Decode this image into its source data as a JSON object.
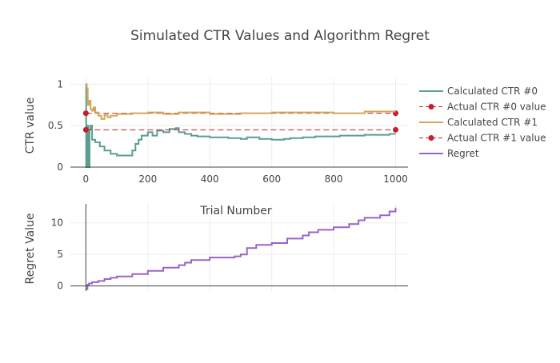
{
  "chart_data": [
    {
      "type": "line",
      "title": "Simulated CTR Values and Algorithm Regret",
      "xlabel": "",
      "ylabel": "CTR value",
      "xlim": [
        -50,
        1040
      ],
      "ylim": [
        0,
        1.08
      ],
      "xticks": [
        0,
        200,
        400,
        600,
        800,
        1000
      ],
      "xtick_labels": [
        "0",
        "200",
        "400",
        "600",
        "800",
        "1000"
      ],
      "yticks": [
        0,
        0.5,
        1
      ],
      "ytick_labels": [
        "0",
        "0.5",
        "1"
      ],
      "grid": true,
      "legend_position": "right",
      "series": [
        {
          "name": "Calculated CTR #0",
          "color": "#5b9e8e",
          "style": "step",
          "x": [
            0,
            1,
            2,
            3,
            5,
            8,
            12,
            15,
            20,
            30,
            45,
            60,
            80,
            100,
            140,
            150,
            160,
            170,
            180,
            200,
            215,
            230,
            250,
            270,
            290,
            300,
            320,
            340,
            360,
            400,
            460,
            500,
            520,
            560,
            600,
            640,
            660,
            700,
            740,
            780,
            820,
            860,
            900,
            940,
            980,
            1000
          ],
          "y": [
            1,
            0,
            0,
            0,
            0.5,
            0,
            0.45,
            0.5,
            0.33,
            0.3,
            0.25,
            0.2,
            0.16,
            0.14,
            0.14,
            0.2,
            0.28,
            0.33,
            0.38,
            0.42,
            0.38,
            0.44,
            0.42,
            0.46,
            0.47,
            0.42,
            0.4,
            0.38,
            0.37,
            0.36,
            0.35,
            0.34,
            0.36,
            0.34,
            0.33,
            0.34,
            0.35,
            0.36,
            0.37,
            0.37,
            0.38,
            0.38,
            0.39,
            0.39,
            0.4,
            0.4
          ]
        },
        {
          "name": "Actual CTR #0 value",
          "color": "#c81e2a",
          "style": "dashed-markers",
          "x": [
            0,
            1000
          ],
          "y": [
            0.65,
            0.65
          ]
        },
        {
          "name": "Calculated CTR #1",
          "color": "#d4a65a",
          "style": "step",
          "x": [
            0,
            3,
            6,
            10,
            15,
            20,
            25,
            30,
            40,
            50,
            60,
            70,
            80,
            100,
            150,
            200,
            250,
            300,
            400,
            500,
            600,
            700,
            800,
            900,
            1000
          ],
          "y": [
            1,
            0.95,
            0.75,
            0.8,
            0.7,
            0.68,
            0.72,
            0.66,
            0.62,
            0.58,
            0.63,
            0.6,
            0.62,
            0.64,
            0.65,
            0.66,
            0.64,
            0.66,
            0.64,
            0.65,
            0.66,
            0.66,
            0.65,
            0.67,
            0.67
          ]
        },
        {
          "name": "Actual CTR #1 value",
          "color": "#c81e2a",
          "style": "dashed-markers",
          "x": [
            0,
            1000
          ],
          "y": [
            0.45,
            0.45
          ]
        }
      ]
    },
    {
      "type": "line",
      "title": "Trial Number",
      "xlabel": "",
      "ylabel": "Regret Value",
      "xlim": [
        -50,
        1040
      ],
      "ylim": [
        -0.8,
        13
      ],
      "yticks": [
        0,
        5,
        10
      ],
      "ytick_labels": [
        "0",
        "5",
        "10"
      ],
      "grid": true,
      "series": [
        {
          "name": "Regret",
          "color": "#9a63c8",
          "style": "step",
          "x": [
            0,
            5,
            10,
            20,
            40,
            60,
            80,
            100,
            150,
            200,
            250,
            300,
            320,
            340,
            400,
            480,
            500,
            520,
            550,
            600,
            650,
            700,
            720,
            750,
            800,
            850,
            880,
            900,
            950,
            980,
            1000
          ],
          "y": [
            -0.5,
            0.2,
            0.4,
            0.6,
            0.8,
            1.1,
            1.3,
            1.5,
            1.9,
            2.4,
            2.9,
            3.3,
            3.7,
            4.1,
            4.5,
            4.7,
            5.0,
            6.0,
            6.5,
            6.8,
            7.5,
            8.0,
            8.5,
            8.9,
            9.3,
            9.8,
            10.4,
            10.8,
            11.2,
            11.8,
            12.4
          ]
        }
      ]
    }
  ]
}
